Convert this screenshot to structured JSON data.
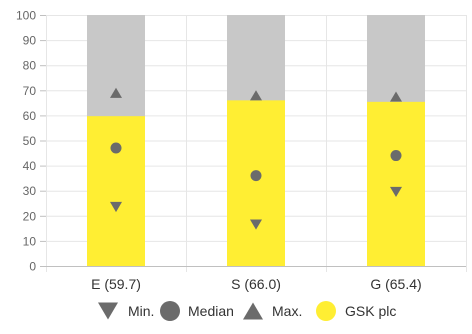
{
  "chart_data": {
    "type": "bar",
    "categories": [
      "E (59.7)",
      "S (66.0)",
      "G (65.4)"
    ],
    "ylim": [
      0,
      100
    ],
    "yticks": [
      0,
      10,
      20,
      30,
      40,
      50,
      60,
      70,
      80,
      90,
      100
    ],
    "grid": true,
    "legend_position": "bottom",
    "series": [
      {
        "name": "GSK plc",
        "kind": "bar",
        "values": [
          59.7,
          66.0,
          65.4
        ],
        "color": "#ffee33"
      },
      {
        "name": "Min.",
        "kind": "marker",
        "marker": "triangle-down",
        "values": [
          23.5,
          16.5,
          29.5
        ],
        "color": "#6b6b6b"
      },
      {
        "name": "Median",
        "kind": "marker",
        "marker": "circle",
        "values": [
          47,
          36,
          44
        ],
        "color": "#6b6b6b"
      },
      {
        "name": "Max.",
        "kind": "marker",
        "marker": "triangle-up",
        "values": [
          69,
          68,
          67.5
        ],
        "color": "#6b6b6b"
      }
    ],
    "range_background": {
      "value": 100,
      "color": "#c8c8c8"
    },
    "legend": [
      "Min.",
      "Median",
      "Max.",
      "GSK plc"
    ]
  }
}
